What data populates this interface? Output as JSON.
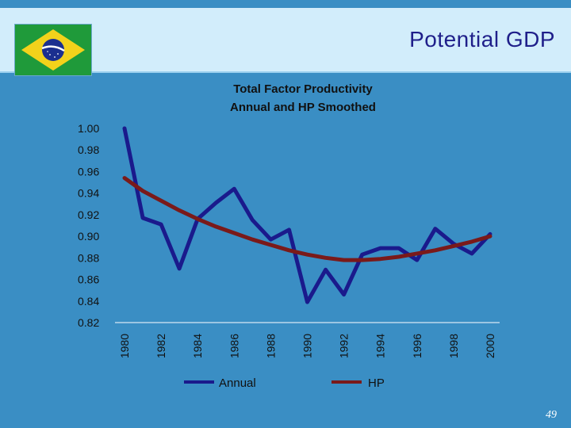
{
  "header": {
    "title": "Potential GDP"
  },
  "footer": {
    "page_number": "49"
  },
  "colors": {
    "background": "#3a8ec4",
    "header_band": "#d2edfb",
    "annual_line": "#1a1a8c",
    "hp_line": "#7a1a1a",
    "axis_line": "#ffffff",
    "text": "#111111"
  },
  "chart_data": {
    "type": "line",
    "title": "Total Factor Productivity",
    "subtitle": "Annual and HP Smoothed",
    "xlabel": "",
    "ylabel": "",
    "x": [
      1980,
      1981,
      1982,
      1983,
      1984,
      1985,
      1986,
      1987,
      1988,
      1989,
      1990,
      1991,
      1992,
      1993,
      1994,
      1995,
      1996,
      1997,
      1998,
      1999,
      2000
    ],
    "x_tick_labels": [
      "1980",
      "1982",
      "1984",
      "1986",
      "1988",
      "1990",
      "1992",
      "1994",
      "1996",
      "1998",
      "2000"
    ],
    "y_tick_labels": [
      "1.00",
      "0.98",
      "0.96",
      "0.94",
      "0.92",
      "0.90",
      "0.88",
      "0.86",
      "0.84",
      "0.82"
    ],
    "ylim": [
      0.82,
      1.0
    ],
    "grid": false,
    "legend_position": "bottom",
    "series": [
      {
        "name": "Annual",
        "values": [
          1.0,
          0.917,
          0.911,
          0.87,
          0.916,
          0.931,
          0.944,
          0.915,
          0.897,
          0.906,
          0.839,
          0.869,
          0.846,
          0.883,
          0.889,
          0.889,
          0.878,
          0.907,
          0.893,
          0.884,
          0.902
        ]
      },
      {
        "name": "HP",
        "values": [
          0.954,
          0.942,
          0.933,
          0.924,
          0.916,
          0.909,
          0.903,
          0.897,
          0.892,
          0.887,
          0.883,
          0.88,
          0.878,
          0.878,
          0.879,
          0.881,
          0.884,
          0.887,
          0.891,
          0.895,
          0.9
        ]
      }
    ]
  }
}
